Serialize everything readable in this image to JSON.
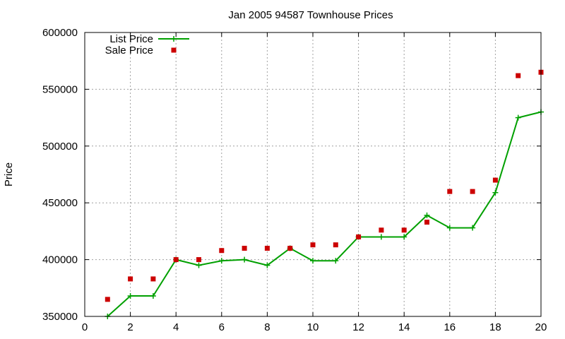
{
  "chart_data": {
    "type": "line",
    "title": "Jan 2005 94587 Townhouse Prices",
    "xlabel": "",
    "ylabel": "Price",
    "xlim": [
      0,
      20
    ],
    "ylim": [
      350000,
      600000
    ],
    "x_ticks": [
      0,
      2,
      4,
      6,
      8,
      10,
      12,
      14,
      16,
      18,
      20
    ],
    "y_ticks": [
      350000,
      400000,
      450000,
      500000,
      550000,
      600000
    ],
    "grid": true,
    "legend_position": "top-left",
    "series": [
      {
        "name": "List Price",
        "style": "line-with-plus-markers",
        "color": "#00a000",
        "x": [
          1,
          2,
          3,
          4,
          5,
          6,
          7,
          8,
          9,
          10,
          11,
          12,
          13,
          14,
          15,
          16,
          17,
          18,
          19,
          20
        ],
        "values": [
          350000,
          368000,
          368000,
          400000,
          395000,
          399000,
          400000,
          395000,
          410000,
          399000,
          399000,
          420000,
          420000,
          420000,
          439000,
          428000,
          428000,
          459000,
          525000,
          530000
        ]
      },
      {
        "name": "Sale Price",
        "style": "square-markers",
        "color": "#cc0000",
        "x": [
          1,
          2,
          3,
          4,
          5,
          6,
          7,
          8,
          9,
          10,
          11,
          12,
          13,
          14,
          15,
          16,
          17,
          18,
          19,
          20
        ],
        "values": [
          365000,
          383000,
          383000,
          400000,
          400000,
          408000,
          410000,
          410000,
          410000,
          413000,
          413000,
          420000,
          426000,
          426000,
          433000,
          460000,
          460000,
          470000,
          562000,
          565000
        ]
      }
    ]
  }
}
